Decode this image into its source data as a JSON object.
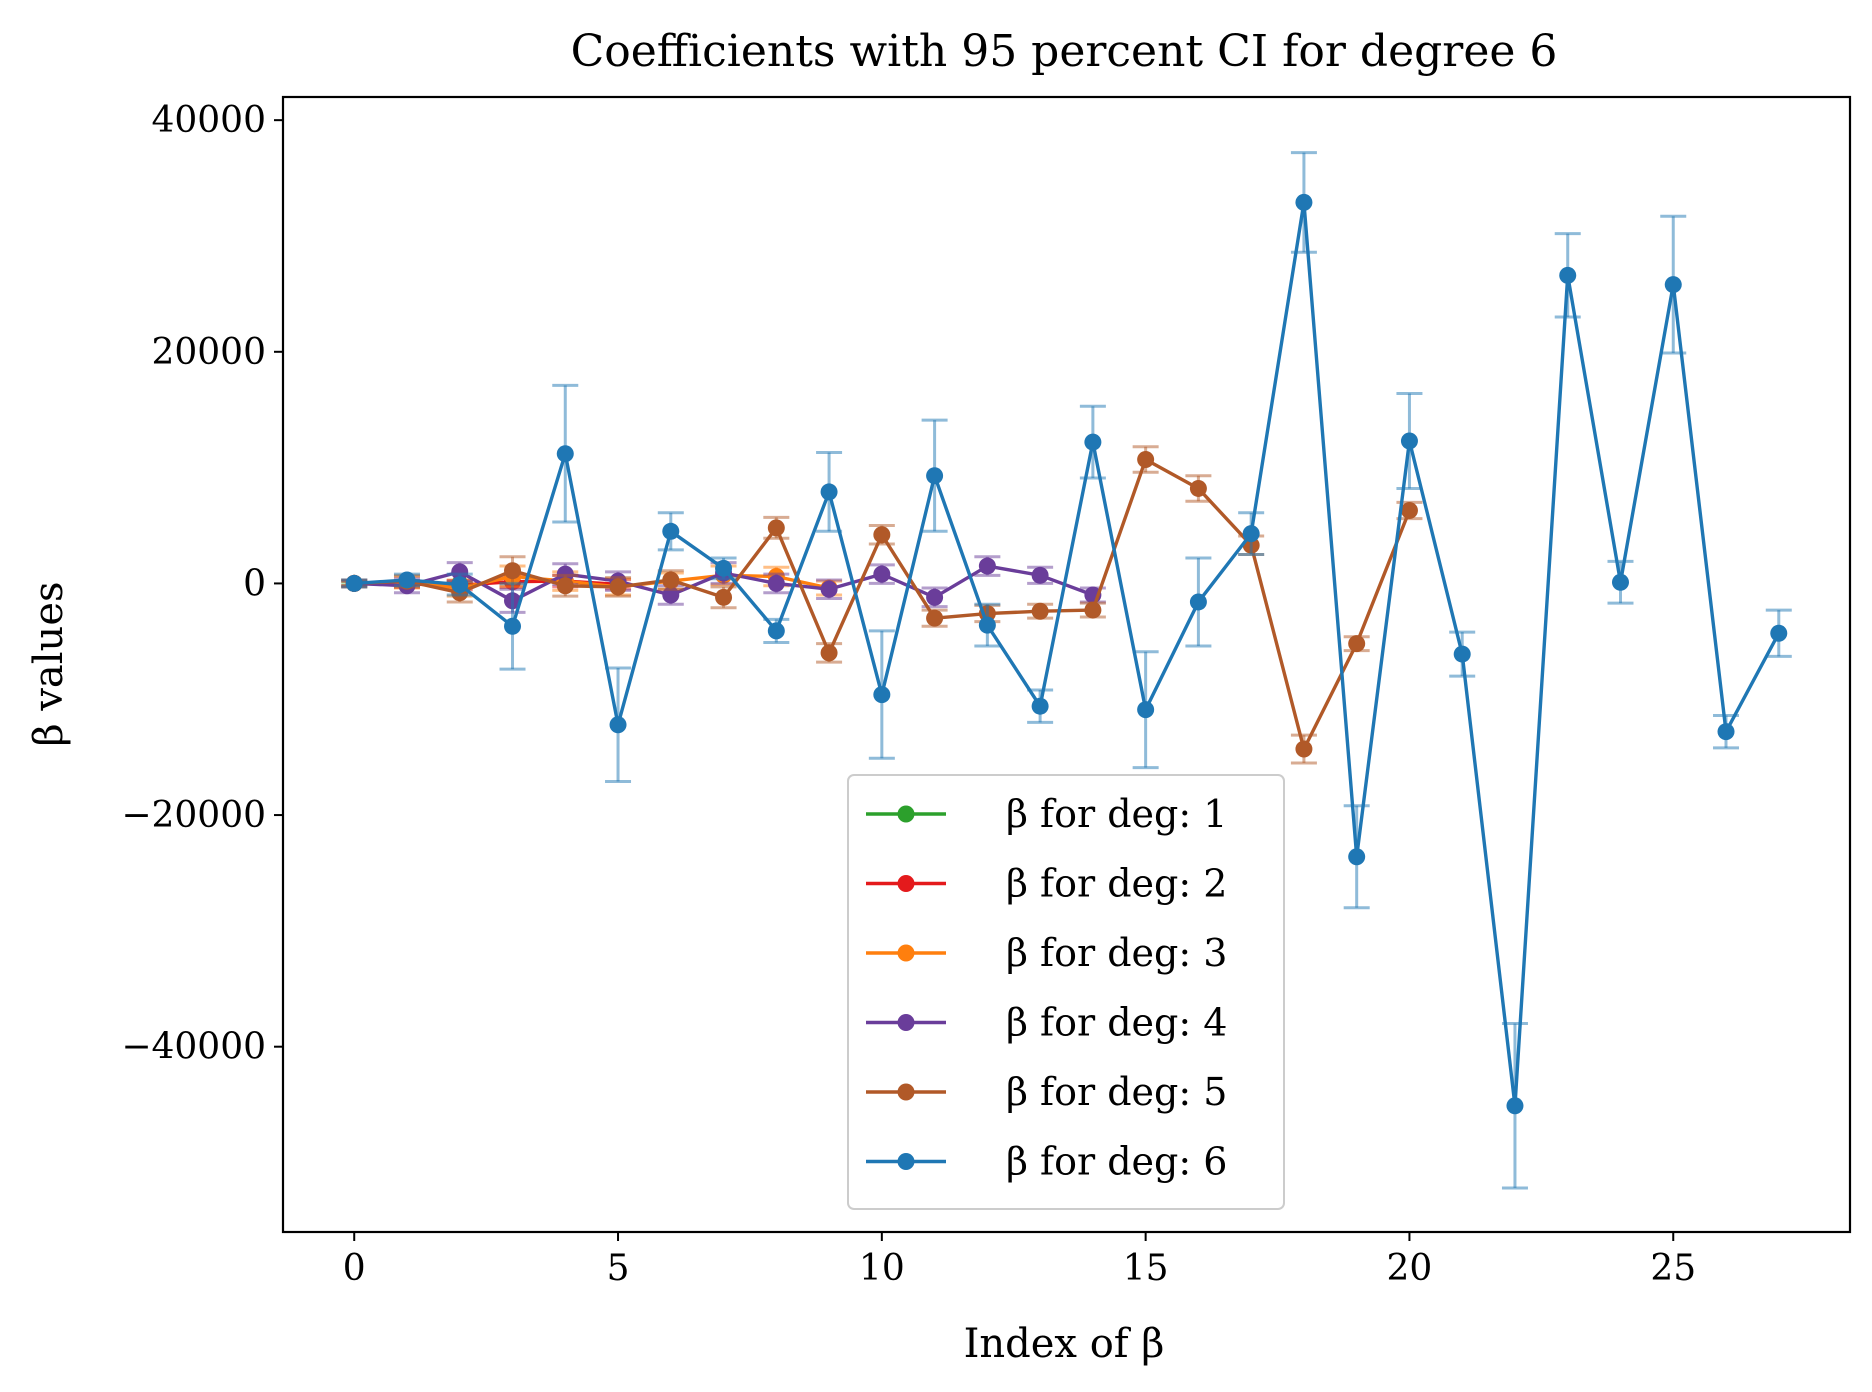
{
  "chart_data": {
    "type": "line",
    "title": "Coefficients with 95 percent CI for degree 6",
    "xlabel": "Index of β",
    "ylabel": "β values",
    "xlim": [
      -1.35,
      28.35
    ],
    "ylim": [
      -56000,
      42000
    ],
    "xticks": [
      0,
      5,
      10,
      15,
      20,
      25
    ],
    "yticks": [
      -40000,
      -20000,
      0,
      20000,
      40000
    ],
    "xtick_labels": [
      "0",
      "5",
      "10",
      "15",
      "20",
      "25"
    ],
    "ytick_labels": [
      "−40000",
      "−20000",
      "0",
      "20000",
      "40000"
    ],
    "legend_position": "lower-center",
    "error_bars": "95 percent CI",
    "series": [
      {
        "name": "β for deg: 1",
        "color": "#2ca02c",
        "x": [
          0,
          1,
          2
        ],
        "y": [
          0,
          0,
          -20
        ],
        "ci": [
          150,
          150,
          150
        ]
      },
      {
        "name": "β for deg: 2",
        "color": "#e41a1c",
        "x": [
          0,
          1,
          2,
          3,
          4,
          5
        ],
        "y": [
          0,
          -50,
          -150,
          150,
          200,
          -80
        ],
        "ci": [
          200,
          300,
          400,
          500,
          500,
          400
        ]
      },
      {
        "name": "β for deg: 3",
        "color": "#ff7f0e",
        "x": [
          0,
          1,
          2,
          3,
          4,
          5,
          6,
          7,
          8,
          9
        ],
        "y": [
          0,
          100,
          -400,
          600,
          200,
          -300,
          200,
          700,
          600,
          -400
        ],
        "ci": [
          300,
          500,
          700,
          900,
          800,
          700,
          700,
          800,
          800,
          600
        ]
      },
      {
        "name": "β for deg: 4",
        "color": "#6a3d9a",
        "x": [
          0,
          1,
          2,
          3,
          4,
          5,
          6,
          7,
          8,
          9,
          10,
          11,
          12,
          13,
          14
        ],
        "y": [
          0,
          -200,
          1000,
          -1500,
          800,
          200,
          -1000,
          900,
          0,
          -500,
          800,
          -1200,
          1500,
          700,
          -1000
        ],
        "ci": [
          300,
          600,
          800,
          1000,
          900,
          800,
          800,
          900,
          800,
          800,
          800,
          800,
          800,
          700,
          600
        ]
      },
      {
        "name": "β for deg: 5",
        "color": "#b15928",
        "x": [
          0,
          1,
          2,
          3,
          4,
          5,
          6,
          7,
          8,
          9,
          10,
          11,
          12,
          13,
          14,
          15,
          16,
          17,
          18,
          19,
          20
        ],
        "y": [
          0,
          200,
          -800,
          1100,
          -200,
          -300,
          300,
          -1200,
          4800,
          -6000,
          4200,
          -3000,
          -2600,
          -2400,
          -2300,
          10700,
          8200,
          3300,
          -14300,
          -5200,
          6300
        ],
        "ci": [
          300,
          500,
          800,
          1200,
          900,
          800,
          800,
          900,
          900,
          800,
          800,
          700,
          700,
          600,
          600,
          1100,
          1100,
          800,
          1200,
          600,
          700
        ]
      },
      {
        "name": "β for deg: 6",
        "color": "#1f77b4",
        "x": [
          0,
          1,
          2,
          3,
          4,
          5,
          6,
          7,
          8,
          9,
          10,
          11,
          12,
          13,
          14,
          15,
          16,
          17,
          18,
          19,
          20,
          21,
          22,
          23,
          24,
          25,
          26,
          27
        ],
        "y": [
          0,
          300,
          -100,
          -3700,
          11200,
          -12200,
          4500,
          1300,
          -4100,
          7900,
          -9600,
          9300,
          -3600,
          -10600,
          12200,
          -10900,
          -1600,
          4300,
          32900,
          -23600,
          12300,
          -6100,
          -45100,
          26600,
          100,
          25800,
          -12800,
          -4300
        ],
        "ci": [
          300,
          500,
          900,
          3700,
          5900,
          4900,
          1600,
          900,
          1000,
          3400,
          5500,
          4800,
          1800,
          1400,
          3100,
          5000,
          3800,
          1800,
          4300,
          4400,
          4100,
          1900,
          7100,
          3600,
          1800,
          5900,
          1400,
          2000
        ]
      }
    ]
  }
}
